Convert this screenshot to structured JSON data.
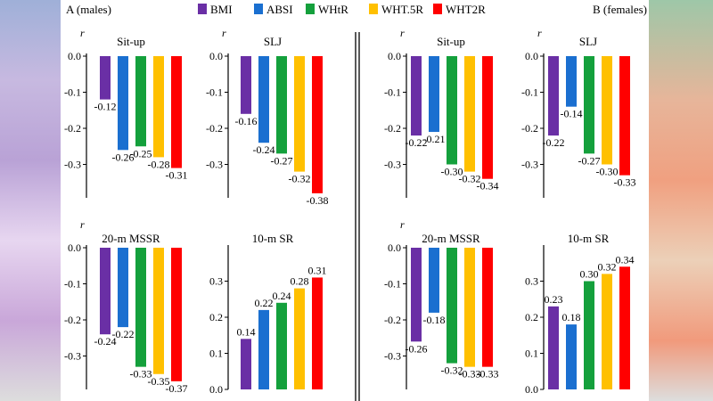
{
  "labels": {
    "left": "A (males)",
    "right": "B (females)",
    "r": "r"
  },
  "legend": [
    {
      "name": "BMI",
      "color": "#6a2fa5"
    },
    {
      "name": "ABSI",
      "color": "#1a6fd0"
    },
    {
      "name": "WHtR",
      "color": "#14a03c"
    },
    {
      "name": "WHT.5R",
      "color": "#ffc000"
    },
    {
      "name": "WHT2R",
      "color": "#ff0000"
    }
  ],
  "chart_data": [
    {
      "type": "bar",
      "title": "Sit-up",
      "group": "males",
      "ylabel": "r",
      "ylim": [
        -0.38,
        0
      ],
      "ticks": [
        "0.0",
        "-0.1",
        "-0.2",
        "-0.3"
      ],
      "tickvals": [
        0,
        -0.1,
        -0.2,
        -0.3
      ],
      "categories": [
        "BMI",
        "ABSI",
        "WHtR",
        "WHT.5R",
        "WHT2R"
      ],
      "values": [
        -0.12,
        -0.26,
        -0.25,
        -0.28,
        -0.31
      ],
      "labels": [
        "-0.12",
        "-0.26",
        "-0.25",
        "-0.28",
        "-0.31"
      ]
    },
    {
      "type": "bar",
      "title": "SLJ",
      "group": "males",
      "ylabel": "r",
      "ylim": [
        -0.38,
        0
      ],
      "ticks": [
        "0.0",
        "-0.1",
        "-0.2",
        "-0.3"
      ],
      "tickvals": [
        0,
        -0.1,
        -0.2,
        -0.3
      ],
      "categories": [
        "BMI",
        "ABSI",
        "WHtR",
        "WHT.5R",
        "WHT2R"
      ],
      "values": [
        -0.16,
        -0.24,
        -0.27,
        -0.32,
        -0.38
      ],
      "labels": [
        "-0.16",
        "-0.24",
        "-0.27",
        "-0.32",
        "-0.38"
      ]
    },
    {
      "type": "bar",
      "title": "Sit-up",
      "group": "females",
      "ylabel": "r",
      "ylim": [
        -0.38,
        0
      ],
      "ticks": [
        "0.0",
        "-0.1",
        "-0.2",
        "-0.3"
      ],
      "tickvals": [
        0,
        -0.1,
        -0.2,
        -0.3
      ],
      "categories": [
        "BMI",
        "ABSI",
        "WHtR",
        "WHT.5R",
        "WHT2R"
      ],
      "values": [
        -0.22,
        -0.21,
        -0.3,
        -0.32,
        -0.34
      ],
      "labels": [
        "-0.22",
        "-0.21",
        "-0.30",
        "-0.32",
        "-0.34"
      ]
    },
    {
      "type": "bar",
      "title": "SLJ",
      "group": "females",
      "ylabel": "r",
      "ylim": [
        -0.38,
        0
      ],
      "ticks": [
        "0.0",
        "-0.1",
        "-0.2",
        "-0.3"
      ],
      "tickvals": [
        0,
        -0.1,
        -0.2,
        -0.3
      ],
      "categories": [
        "BMI",
        "ABSI",
        "WHtR",
        "WHT.5R",
        "WHT2R"
      ],
      "values": [
        -0.22,
        -0.14,
        -0.27,
        -0.3,
        -0.33
      ],
      "labels": [
        "-0.22",
        "-0.14",
        "-0.27",
        "-0.30",
        "-0.33"
      ]
    },
    {
      "type": "bar",
      "title": "20-m MSSR",
      "group": "males",
      "ylabel": "r",
      "ylim": [
        -0.38,
        0
      ],
      "ticks": [
        "0.0",
        "-0.1",
        "-0.2",
        "-0.3"
      ],
      "tickvals": [
        0,
        -0.1,
        -0.2,
        -0.3
      ],
      "categories": [
        "BMI",
        "ABSI",
        "WHtR",
        "WHT.5R",
        "WHT2R"
      ],
      "values": [
        -0.24,
        -0.22,
        -0.33,
        -0.35,
        -0.37
      ],
      "labels": [
        "-0.24",
        "-0.22",
        "-0.33",
        "-0.35",
        "-0.37"
      ]
    },
    {
      "type": "bar",
      "title": "10-m SR",
      "group": "males",
      "ylabel": "",
      "ylim": [
        0,
        0.38
      ],
      "ticks": [
        "0.0",
        "0.1",
        "0.2",
        "0.3"
      ],
      "tickvals": [
        0,
        0.1,
        0.2,
        0.3
      ],
      "categories": [
        "BMI",
        "ABSI",
        "WHtR",
        "WHT.5R",
        "WHT2R"
      ],
      "values": [
        0.14,
        0.22,
        0.24,
        0.28,
        0.31
      ],
      "labels": [
        "0.14",
        "0.22",
        "0.24",
        "0.28",
        "0.31"
      ]
    },
    {
      "type": "bar",
      "title": "20-m MSSR",
      "group": "females",
      "ylabel": "r",
      "ylim": [
        -0.38,
        0
      ],
      "ticks": [
        "0.0",
        "-0.1",
        "-0.2",
        "-0.3"
      ],
      "tickvals": [
        0,
        -0.1,
        -0.2,
        -0.3
      ],
      "categories": [
        "BMI",
        "ABSI",
        "WHtR",
        "WHT.5R",
        "WHT2R"
      ],
      "values": [
        -0.26,
        -0.18,
        -0.32,
        -0.33,
        -0.33
      ],
      "labels": [
        "-0.26",
        "-0.18",
        "-0.32",
        "-0.33",
        "-0.33"
      ]
    },
    {
      "type": "bar",
      "title": "10-m SR",
      "group": "females",
      "ylabel": "",
      "ylim": [
        0,
        0.38
      ],
      "ticks": [
        "0.0",
        "0.1",
        "0.2",
        "0.3"
      ],
      "tickvals": [
        0,
        0.1,
        0.2,
        0.3
      ],
      "categories": [
        "BMI",
        "ABSI",
        "WHtR",
        "WHT.5R",
        "WHT2R"
      ],
      "values": [
        0.23,
        0.18,
        0.3,
        0.32,
        0.34
      ],
      "labels": [
        "0.23",
        "0.18",
        "0.30",
        "0.32",
        "0.34"
      ]
    }
  ]
}
